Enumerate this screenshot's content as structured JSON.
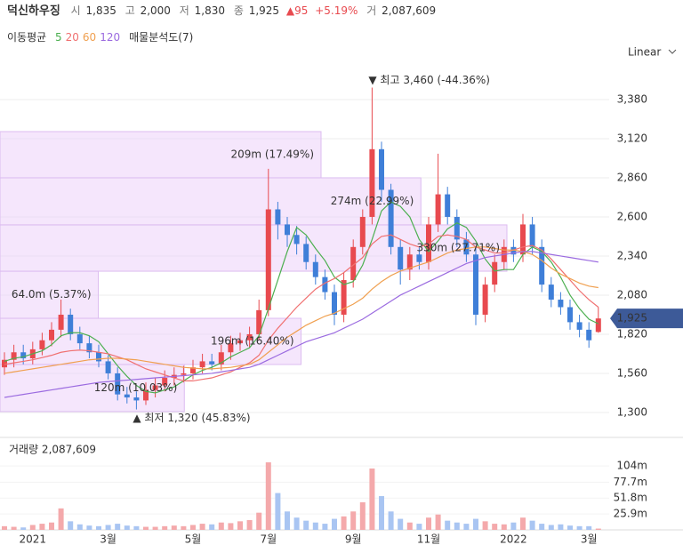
{
  "header": {
    "name": "덕신하우징",
    "open_label": "시",
    "open": "1,835",
    "high_label": "고",
    "high": "2,000",
    "low_label": "저",
    "low": "1,830",
    "close_label": "종",
    "close": "1,925",
    "change": "▲95",
    "change_pct": "+5.19%",
    "volume_label": "거",
    "volume": "2,087,609"
  },
  "toolbar": {
    "ma_label": "이동평균",
    "profile_label": "매물분석도(7)",
    "scale": "Linear"
  },
  "chart_data": {
    "type": "candlestick",
    "categories": [
      null,
      null,
      null,
      "2021",
      null,
      null,
      null,
      null,
      null,
      null,
      null,
      "3월",
      null,
      null,
      null,
      null,
      null,
      null,
      null,
      null,
      "5월",
      null,
      null,
      null,
      null,
      null,
      null,
      null,
      "7월",
      null,
      null,
      null,
      null,
      null,
      null,
      null,
      null,
      "9월",
      null,
      null,
      null,
      null,
      null,
      null,
      null,
      "11월",
      null,
      null,
      null,
      null,
      null,
      null,
      null,
      null,
      "2022",
      null,
      null,
      null,
      null,
      null,
      null,
      null,
      "3월",
      null
    ],
    "open": [
      1600,
      1650,
      1700,
      1660,
      1720,
      1780,
      1850,
      1950,
      1820,
      1760,
      1700,
      1640,
      1560,
      1420,
      1400,
      1380,
      1450,
      1480,
      1530,
      1550,
      1560,
      1600,
      1640,
      1620,
      1700,
      1760,
      1780,
      1820,
      1980,
      2650,
      2550,
      2480,
      2420,
      2300,
      2200,
      2100,
      1950,
      2180,
      2400,
      2600,
      3050,
      2780,
      2400,
      2250,
      2350,
      2300,
      2550,
      2750,
      2600,
      2450,
      2350,
      1950,
      2150,
      2300,
      2400,
      2350,
      2550,
      2400,
      2150,
      2050,
      2000,
      1900,
      1850,
      1835
    ],
    "high": [
      1700,
      1750,
      1750,
      1770,
      1830,
      1900,
      2050,
      1990,
      1870,
      1810,
      1750,
      1680,
      1600,
      1470,
      1440,
      1500,
      1530,
      1580,
      1600,
      1610,
      1650,
      1690,
      1690,
      1750,
      1810,
      1830,
      1870,
      2050,
      2920,
      2700,
      2600,
      2540,
      2470,
      2350,
      2250,
      2150,
      2230,
      2450,
      2650,
      3460,
      3100,
      2820,
      2450,
      2400,
      2400,
      2600,
      3020,
      2800,
      2650,
      2500,
      2400,
      2200,
      2350,
      2450,
      2450,
      2620,
      2600,
      2450,
      2200,
      2100,
      2050,
      1950,
      1900,
      2000
    ],
    "low": [
      1550,
      1600,
      1620,
      1620,
      1680,
      1740,
      1800,
      1780,
      1720,
      1660,
      1600,
      1520,
      1380,
      1360,
      1320,
      1350,
      1400,
      1440,
      1480,
      1500,
      1520,
      1560,
      1580,
      1580,
      1650,
      1710,
      1730,
      1780,
      1940,
      2450,
      2400,
      2350,
      2250,
      2150,
      2050,
      1880,
      1900,
      2130,
      2350,
      2550,
      2700,
      2350,
      2150,
      2180,
      2250,
      2250,
      2500,
      2550,
      2400,
      2300,
      1880,
      1900,
      2100,
      2250,
      2300,
      2300,
      2350,
      2100,
      2000,
      1950,
      1850,
      1800,
      1730,
      1830
    ],
    "close": [
      1650,
      1700,
      1660,
      1720,
      1780,
      1850,
      1950,
      1820,
      1760,
      1700,
      1640,
      1560,
      1420,
      1400,
      1380,
      1450,
      1480,
      1530,
      1550,
      1560,
      1600,
      1640,
      1620,
      1700,
      1760,
      1780,
      1820,
      1980,
      2650,
      2550,
      2480,
      2420,
      2300,
      2200,
      2100,
      1950,
      2180,
      2400,
      2600,
      3050,
      2780,
      2400,
      2250,
      2350,
      2300,
      2550,
      2750,
      2600,
      2450,
      2350,
      1950,
      2150,
      2300,
      2400,
      2350,
      2550,
      2400,
      2150,
      2050,
      2000,
      1900,
      1850,
      1780,
      1925
    ],
    "up_color": "#e84a4f",
    "down_color": "#3f7fd8",
    "ylim": [
      1146,
      3569
    ],
    "yticks": [
      {
        "value": 1300,
        "label": "1,300"
      },
      {
        "value": 1560,
        "label": "1,560"
      },
      {
        "value": 1820,
        "label": "1,820"
      },
      {
        "value": 2080,
        "label": "2,080"
      },
      {
        "value": 2340,
        "label": "2,340"
      },
      {
        "value": 2600,
        "label": "2,600"
      },
      {
        "value": 2860,
        "label": "2,860"
      },
      {
        "value": 3120,
        "label": "3,120"
      },
      {
        "value": 3380,
        "label": "3,380"
      }
    ],
    "grid": true,
    "ma": [
      {
        "name": "5",
        "color": "#4caf50",
        "values": [
          1640,
          1660,
          1670,
          1690,
          1710,
          1750,
          1810,
          1830,
          1830,
          1810,
          1770,
          1690,
          1610,
          1540,
          1480,
          1440,
          1430,
          1450,
          1470,
          1510,
          1550,
          1580,
          1600,
          1630,
          1670,
          1700,
          1730,
          1810,
          1990,
          2180,
          2370,
          2530,
          2480,
          2390,
          2310,
          2200,
          2150,
          2170,
          2280,
          2450,
          2640,
          2700,
          2670,
          2600,
          2450,
          2370,
          2440,
          2520,
          2560,
          2530,
          2440,
          2320,
          2240,
          2250,
          2250,
          2350,
          2400,
          2370,
          2300,
          2200,
          2080,
          1990,
          1920,
          1890
        ]
      },
      {
        "name": "20",
        "color": "#f07070",
        "values": [
          1620,
          1630,
          1640,
          1650,
          1665,
          1680,
          1700,
          1710,
          1715,
          1710,
          1700,
          1690,
          1670,
          1650,
          1620,
          1590,
          1570,
          1550,
          1530,
          1510,
          1510,
          1520,
          1530,
          1550,
          1570,
          1600,
          1630,
          1680,
          1780,
          1860,
          1930,
          2000,
          2060,
          2120,
          2160,
          2190,
          2230,
          2280,
          2330,
          2420,
          2470,
          2480,
          2450,
          2420,
          2400,
          2420,
          2470,
          2480,
          2470,
          2450,
          2400,
          2380,
          2360,
          2360,
          2380,
          2400,
          2410,
          2380,
          2320,
          2250,
          2180,
          2110,
          2050,
          2000
        ]
      },
      {
        "name": "60",
        "color": "#f0a050",
        "values": [
          1560,
          1570,
          1580,
          1590,
          1600,
          1610,
          1620,
          1630,
          1640,
          1650,
          1655,
          1660,
          1660,
          1655,
          1650,
          1640,
          1630,
          1620,
          1610,
          1600,
          1595,
          1590,
          1590,
          1595,
          1600,
          1610,
          1620,
          1650,
          1700,
          1750,
          1800,
          1840,
          1880,
          1910,
          1940,
          1960,
          1990,
          2020,
          2060,
          2120,
          2170,
          2210,
          2240,
          2260,
          2280,
          2300,
          2330,
          2360,
          2380,
          2390,
          2400,
          2400,
          2390,
          2380,
          2380,
          2370,
          2350,
          2310,
          2260,
          2220,
          2190,
          2160,
          2140,
          2130
        ]
      },
      {
        "name": "120",
        "color": "#9b6be0",
        "values": [
          1400,
          1410,
          1420,
          1430,
          1440,
          1450,
          1460,
          1470,
          1480,
          1490,
          1500,
          1505,
          1510,
          1515,
          1520,
          1525,
          1530,
          1535,
          1540,
          1545,
          1550,
          1555,
          1560,
          1570,
          1580,
          1590,
          1600,
          1620,
          1650,
          1680,
          1710,
          1740,
          1770,
          1790,
          1810,
          1830,
          1860,
          1890,
          1920,
          1960,
          2000,
          2040,
          2080,
          2110,
          2140,
          2170,
          2200,
          2230,
          2260,
          2290,
          2310,
          2330,
          2340,
          2350,
          2360,
          2370,
          2370,
          2360,
          2350,
          2340,
          2330,
          2320,
          2310,
          2300
        ]
      }
    ],
    "profile": {
      "bins": [
        1306,
        1619,
        1926,
        2239,
        2547,
        2860,
        3167
      ],
      "values": [
        120,
        196,
        64.0,
        330,
        274,
        209
      ],
      "value_labels": [
        "120m (10.03%)",
        "196m (16.40%)",
        "64.0m (5.37%)",
        "330m (27.71%)",
        "274m (22.99%)",
        "209m (17.49%)"
      ]
    },
    "annotations": [
      {
        "value": 3460,
        "label": "▼ 최고 3,460 (-44.36%)"
      },
      {
        "value": 1320,
        "label": "▲ 최저 1,320 (45.83%)"
      }
    ],
    "last_price": {
      "value": 1925,
      "label": "1,925"
    },
    "volume": {
      "title": "거래량 2,087,609",
      "values": [
        6,
        5,
        4,
        8,
        10,
        12,
        35,
        14,
        9,
        7,
        6,
        8,
        10,
        7,
        6,
        5,
        5,
        6,
        7,
        6,
        8,
        10,
        9,
        12,
        11,
        14,
        16,
        28,
        110,
        60,
        30,
        20,
        15,
        12,
        10,
        18,
        22,
        30,
        45,
        100,
        55,
        30,
        18,
        12,
        10,
        20,
        25,
        15,
        12,
        10,
        18,
        14,
        10,
        9,
        12,
        20,
        15,
        10,
        8,
        9,
        7,
        6,
        6,
        2.09
      ],
      "ylim": [
        0,
        139
      ],
      "yticks": [
        {
          "value": 25.9,
          "label": "25.9m"
        },
        {
          "value": 51.8,
          "label": "51.8m"
        },
        {
          "value": 77.7,
          "label": "77.7m"
        },
        {
          "value": 104,
          "label": "104m"
        }
      ]
    }
  }
}
